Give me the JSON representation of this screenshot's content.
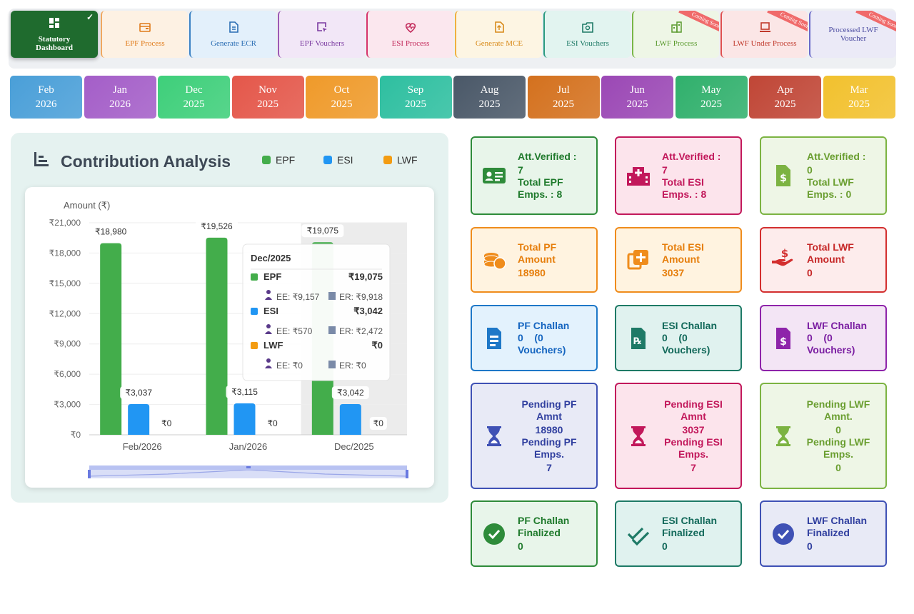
{
  "nav": {
    "tabs": [
      {
        "label": "Statutory Dashboard",
        "icon": "dashboard-grid-icon",
        "active": true,
        "bg": "#1f6b2e",
        "color": "#ffffff"
      },
      {
        "label": "EPF Process",
        "icon": "wallet-icon",
        "bg": "#fdf1e3",
        "color": "#e07b1a",
        "border": "#f0a860"
      },
      {
        "label": "Generate ECR",
        "icon": "document-icon",
        "bg": "#e3f0fb",
        "color": "#2a6db3",
        "border": "#3b82c4"
      },
      {
        "label": "EPF Vouchers",
        "icon": "cursor-box-icon",
        "bg": "#f2e7f7",
        "color": "#7a3aa0",
        "border": "#9b59b6"
      },
      {
        "label": "ESI Process",
        "icon": "heart-pulse-icon",
        "bg": "#fbe7ee",
        "color": "#c2295a",
        "border": "#d6336c"
      },
      {
        "label": "Generate MCE",
        "icon": "upload-doc-icon",
        "bg": "#fdf5e3",
        "color": "#d88a1a",
        "border": "#f0b040"
      },
      {
        "label": "ESI Vouchers",
        "icon": "photo-box-icon",
        "bg": "#e2f4f0",
        "color": "#1e7a66",
        "border": "#2a9a80"
      },
      {
        "label": "LWF Process",
        "icon": "building-icon",
        "bg": "#eef6e6",
        "color": "#5a9a2e",
        "border": "#7ab648",
        "badge": "Coming Soon"
      },
      {
        "label": "LWF Under Process",
        "icon": "laptop-icon",
        "bg": "#fbe6e6",
        "color": "#c0392b",
        "border": "#e05050",
        "badge": "Coming Soon"
      },
      {
        "label": "Processed LWF Voucher",
        "icon": "",
        "bg": "#ebeaf7",
        "color": "#4a4aa0",
        "border": "#6a6ac8",
        "badge": "Coming Soon"
      }
    ],
    "check_mark": "✓"
  },
  "months": [
    {
      "month": "Feb",
      "year": "2026",
      "color": "#4a9fd8"
    },
    {
      "month": "Jan",
      "year": "2026",
      "color": "#a45ec8"
    },
    {
      "month": "Dec",
      "year": "2025",
      "color": "#3ecf7a"
    },
    {
      "month": "Nov",
      "year": "2025",
      "color": "#e4574a"
    },
    {
      "month": "Oct",
      "year": "2025",
      "color": "#ef9a2a"
    },
    {
      "month": "Sep",
      "year": "2025",
      "color": "#2ebfa0"
    },
    {
      "month": "Aug",
      "year": "2025",
      "color": "#4a5868"
    },
    {
      "month": "Jul",
      "year": "2025",
      "color": "#d4711e"
    },
    {
      "month": "Jun",
      "year": "2025",
      "color": "#9b48b5"
    },
    {
      "month": "May",
      "year": "2025",
      "color": "#30b06c"
    },
    {
      "month": "Apr",
      "year": "2025",
      "color": "#c04636"
    },
    {
      "month": "Mar",
      "year": "2025",
      "color": "#f2c12e"
    }
  ],
  "analysis": {
    "title": "Contribution Analysis",
    "legend": [
      {
        "label": "EPF",
        "color": "#43ad4b"
      },
      {
        "label": "ESI",
        "color": "#2196f3"
      },
      {
        "label": "LWF",
        "color": "#f39c12"
      }
    ]
  },
  "chart_data": {
    "type": "bar",
    "ylabel": "Amount (₹)",
    "categories": [
      "Feb/2026",
      "Jan/2026",
      "Dec/2025"
    ],
    "series": [
      {
        "name": "EPF",
        "values": [
          18980,
          19526,
          19075
        ],
        "color": "#43ad4b",
        "labels": [
          "₹18,980",
          "₹19,526",
          "₹19,075"
        ]
      },
      {
        "name": "ESI",
        "values": [
          3037,
          3115,
          3042
        ],
        "color": "#2196f3",
        "labels": [
          "₹3,037",
          "₹3,115",
          "₹3,042"
        ]
      },
      {
        "name": "LWF",
        "values": [
          0,
          0,
          0
        ],
        "color": "#f39c12",
        "labels": [
          "₹0",
          "₹0",
          "₹0"
        ]
      }
    ],
    "ylim": [
      0,
      21000
    ],
    "yticks": [
      0,
      3000,
      6000,
      9000,
      12000,
      15000,
      18000,
      21000
    ],
    "ytick_labels": [
      "₹0",
      "₹3,000",
      "₹6,000",
      "₹9,000",
      "₹12,000",
      "₹15,000",
      "₹18,000",
      "₹21,000"
    ],
    "highlight_category": "Dec/2025",
    "tooltip": {
      "title": "Dec/2025",
      "rows": [
        {
          "name": "EPF",
          "color": "#43ad4b",
          "total": "₹19,075",
          "ee": "EE: ₹9,157",
          "er": "ER: ₹9,918"
        },
        {
          "name": "ESI",
          "color": "#2196f3",
          "total": "₹3,042",
          "ee": "EE: ₹570",
          "er": "ER: ₹2,472"
        },
        {
          "name": "LWF",
          "color": "#f39c12",
          "total": "₹0",
          "ee": "EE: ₹0",
          "er": "ER: ₹0"
        }
      ]
    }
  },
  "cards": [
    {
      "icon": "id-card-icon",
      "lines": [
        "Att.Verified :",
        "7",
        "Total EPF",
        "Emps. : 8"
      ],
      "bg": "#e8f5ea",
      "border": "#2e8b3a",
      "color": "#1f7a2c"
    },
    {
      "icon": "hospital-icon",
      "lines": [
        "Att.Verified :",
        "7",
        "Total ESI",
        "Emps. : 8"
      ],
      "bg": "#fce4ec",
      "border": "#c2185b",
      "color": "#c2185b"
    },
    {
      "icon": "money-doc-icon",
      "lines": [
        "Att.Verified :",
        "0",
        "Total LWF",
        "Emps. : 0"
      ],
      "bg": "#eef6e6",
      "border": "#7cb342",
      "color": "#6a9e30"
    },
    {
      "icon": "coins-icon",
      "lines": [
        "Total PF",
        "Amount",
        "18980"
      ],
      "bg": "#fff3e0",
      "border": "#ef8c1c",
      "color": "#e67e0c"
    },
    {
      "icon": "medical-copy-icon",
      "lines": [
        "Total ESI",
        "Amount",
        "3037"
      ],
      "bg": "#fff3e0",
      "border": "#ef8c1c",
      "color": "#e67e0c"
    },
    {
      "icon": "hand-money-icon",
      "lines": [
        "Total LWF",
        "Amount",
        "0"
      ],
      "bg": "#fdecec",
      "border": "#d32f2f",
      "color": "#c62828"
    },
    {
      "icon": "receipt-icon",
      "lines": [
        "PF Challan",
        "0    (0",
        "Vouchers)"
      ],
      "bg": "#e3f2fd",
      "border": "#1e78c8",
      "color": "#1565c0"
    },
    {
      "icon": "prescription-icon",
      "lines": [
        "ESI Challan",
        "0    (0",
        "Vouchers)"
      ],
      "bg": "#e0f2ef",
      "border": "#1e7a66",
      "color": "#12695a"
    },
    {
      "icon": "money-file-icon",
      "lines": [
        "LWF Challan",
        "0    (0",
        "Vouchers)"
      ],
      "bg": "#f3e5f5",
      "border": "#8e24aa",
      "color": "#7b1fa2"
    },
    {
      "icon": "hourglass-icon",
      "lines": [
        "Pending PF",
        "Amnt",
        "18980",
        "Pending PF",
        "Emps.",
        "7"
      ],
      "bg": "#e8eaf6",
      "border": "#3f51b5",
      "color": "#303f9f",
      "center": true
    },
    {
      "icon": "hourglass-icon",
      "lines": [
        "Pending ESI",
        "Amnt",
        "3037",
        "Pending ESI",
        "Emps.",
        "7"
      ],
      "bg": "#fce4ec",
      "border": "#c2185b",
      "color": "#c2185b",
      "center": true
    },
    {
      "icon": "hourglass-icon",
      "lines": [
        "Pending LWF",
        "Amnt.",
        "0",
        "Pending LWF",
        "Emps.",
        "0"
      ],
      "bg": "#eef6e6",
      "border": "#7cb342",
      "color": "#6a9e30",
      "center": true
    },
    {
      "icon": "check-circle-icon",
      "lines": [
        "PF Challan",
        "Finalized",
        "0"
      ],
      "bg": "#e8f5ea",
      "border": "#2e8b3a",
      "color": "#1f7a2c"
    },
    {
      "icon": "double-check-icon",
      "lines": [
        "ESI Challan",
        "Finalized",
        "0"
      ],
      "bg": "#e0f2ef",
      "border": "#1e7a66",
      "color": "#12695a"
    },
    {
      "icon": "check-circle-icon",
      "lines": [
        "LWF Challan",
        "Finalized",
        "0"
      ],
      "bg": "#e8eaf6",
      "border": "#3f51b5",
      "color": "#303f9f"
    }
  ]
}
